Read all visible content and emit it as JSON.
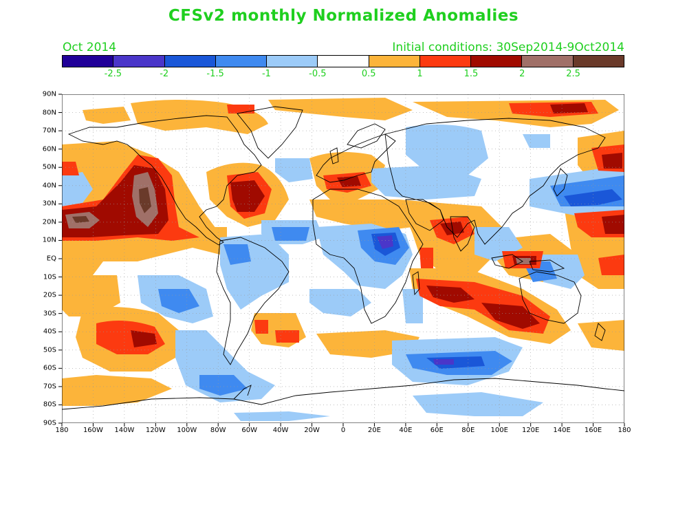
{
  "title": "CFSv2 monthly Normalized Anomalies",
  "subtitle_left": "Oct 2014",
  "subtitle_right": "Initial conditions: 30Sep2014-9Oct2014",
  "colorbar": {
    "colors": [
      "#200098",
      "#4a36c9",
      "#1a57d8",
      "#3f8af0",
      "#9ccbf8",
      "#ffffff",
      "#fcb43a",
      "#fc3a10",
      "#a00a00",
      "#a07068",
      "#6a3a2a"
    ],
    "labels": [
      "-2.5",
      "-2",
      "-1.5",
      "-1",
      "-0.5",
      "0.5",
      "1",
      "1.5",
      "2",
      "2.5"
    ]
  },
  "map": {
    "lat_labels": [
      "90N",
      "80N",
      "70N",
      "60N",
      "50N",
      "40N",
      "30N",
      "20N",
      "10N",
      "EQ",
      "10S",
      "20S",
      "30S",
      "40S",
      "50S",
      "60S",
      "70S",
      "80S",
      "90S"
    ],
    "lon_labels": [
      "180",
      "160W",
      "140W",
      "120W",
      "100W",
      "80W",
      "60W",
      "40W",
      "20W",
      "0",
      "20E",
      "40E",
      "60E",
      "80E",
      "100E",
      "120E",
      "140E",
      "160E",
      "180"
    ],
    "lat_range": [
      -90,
      90
    ],
    "lon_range": [
      -180,
      180
    ],
    "grid": true,
    "projection": "equirectangular"
  }
}
